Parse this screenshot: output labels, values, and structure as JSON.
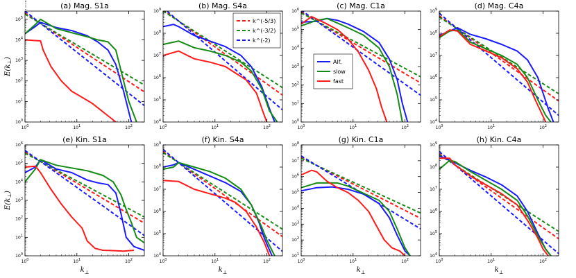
{
  "figure": {
    "x_label": "k",
    "x_label_sub": "⊥",
    "y_label": "E(k",
    "y_label_sub": "⊥",
    "y_label_close": ")"
  },
  "colors": {
    "alf": "#1a1aff",
    "slow": "#158a15",
    "fast": "#ff1a1a",
    "axis": "#000000"
  },
  "legends": {
    "dashed": [
      {
        "label": "k^(-5/3)",
        "color": "#ff1a1a"
      },
      {
        "label": "k^(-3/2)",
        "color": "#158a15"
      },
      {
        "label": "k^(-2)",
        "color": "#1a1aff"
      }
    ],
    "solid": [
      {
        "label": "Alf.",
        "color": "#1a1aff"
      },
      {
        "label": "slow",
        "color": "#158a15"
      },
      {
        "label": "fast",
        "color": "#ff1a1a"
      }
    ]
  },
  "chart_data": [
    {
      "type": "line",
      "title": "(a) Mag. S1a",
      "xlim_exp": [
        0,
        2.3
      ],
      "ylim_exp": [
        0,
        5.4
      ],
      "y_ticks": [
        0,
        1,
        2,
        3,
        4,
        5
      ],
      "x_ticks": [
        0,
        1,
        2
      ],
      "show_ylabel": true,
      "show_xlabel": false,
      "legend": "none",
      "ref_anchor": [
        0.3,
        4.8
      ],
      "series": [
        {
          "name": "Alf.",
          "x": [
            0,
            0.2,
            0.3,
            0.6,
            0.9,
            1.2,
            1.4,
            1.6,
            1.75,
            1.9,
            2.05
          ],
          "y": [
            4.3,
            4.65,
            4.85,
            4.6,
            4.45,
            4.2,
            3.9,
            3.5,
            2.8,
            1.5,
            0
          ]
        },
        {
          "name": "slow",
          "x": [
            0,
            0.2,
            0.3,
            0.6,
            0.9,
            1.2,
            1.4,
            1.6,
            1.75,
            1.9,
            2.0,
            2.15
          ],
          "y": [
            4.3,
            4.75,
            5.0,
            4.55,
            4.35,
            4.15,
            4.0,
            3.9,
            3.5,
            2.0,
            1.0,
            0
          ]
        },
        {
          "name": "fast",
          "x": [
            0,
            0.3,
            0.35,
            0.5,
            0.7,
            0.9,
            1.1,
            1.3,
            1.45,
            1.6,
            1.75
          ],
          "y": [
            4.0,
            3.95,
            3.5,
            2.7,
            2.0,
            1.5,
            1.2,
            0.9,
            0.6,
            0.3,
            0
          ]
        }
      ]
    },
    {
      "type": "line",
      "title": "(b) Mag. S4a",
      "xlim_exp": [
        0,
        2.3
      ],
      "ylim_exp": [
        4,
        9
      ],
      "y_ticks": [
        4,
        5,
        6,
        7,
        8,
        9
      ],
      "x_ticks": [
        0,
        1,
        2
      ],
      "show_ylabel": false,
      "show_xlabel": false,
      "legend": "dashed",
      "ref_anchor": [
        0.3,
        8.55
      ],
      "series": [
        {
          "name": "Alf.",
          "x": [
            0,
            0.2,
            0.3,
            0.6,
            0.9,
            1.2,
            1.5,
            1.7,
            1.9,
            2.05,
            2.15
          ],
          "y": [
            8.3,
            8.4,
            8.3,
            7.9,
            7.65,
            7.4,
            7.0,
            6.5,
            5.6,
            4.6,
            4
          ]
        },
        {
          "name": "slow",
          "x": [
            0,
            0.3,
            0.6,
            0.9,
            1.2,
            1.5,
            1.7,
            1.9,
            2.05,
            2.2
          ],
          "y": [
            7.5,
            7.65,
            7.35,
            7.2,
            7.0,
            6.7,
            6.3,
            5.5,
            4.5,
            4
          ]
        },
        {
          "name": "fast",
          "x": [
            0,
            0.3,
            0.6,
            0.9,
            1.2,
            1.4,
            1.6,
            1.8,
            1.95,
            2.0
          ],
          "y": [
            7.0,
            7.2,
            6.85,
            6.7,
            6.5,
            6.2,
            5.9,
            5.3,
            4.3,
            4
          ]
        }
      ]
    },
    {
      "type": "line",
      "title": "(c) Mag. C1a",
      "xlim_exp": [
        0,
        2.3
      ],
      "ylim_exp": [
        0,
        6
      ],
      "y_ticks": [
        0,
        1,
        2,
        3,
        4,
        5,
        6
      ],
      "x_ticks": [
        0,
        1,
        2
      ],
      "show_ylabel": false,
      "show_xlabel": false,
      "legend": "solid",
      "ref_anchor": [
        0.3,
        5.45
      ],
      "series": [
        {
          "name": "Alf.",
          "x": [
            0,
            0.3,
            0.5,
            0.7,
            0.9,
            1.2,
            1.5,
            1.7,
            1.85,
            1.95,
            2.05
          ],
          "y": [
            5.4,
            5.45,
            5.6,
            5.5,
            5.3,
            4.9,
            4.3,
            3.4,
            2.3,
            1.0,
            0
          ]
        },
        {
          "name": "slow",
          "x": [
            0,
            0.3,
            0.5,
            0.7,
            0.9,
            1.2,
            1.5,
            1.7,
            1.85,
            1.95
          ],
          "y": [
            5.2,
            5.5,
            5.6,
            5.35,
            5.1,
            4.7,
            4.0,
            3.0,
            1.5,
            0
          ]
        },
        {
          "name": "fast",
          "x": [
            0,
            0.2,
            0.35,
            0.5,
            0.7,
            0.9,
            1.1,
            1.3,
            1.45,
            1.55,
            1.65
          ],
          "y": [
            5.3,
            5.7,
            5.5,
            5.3,
            5.0,
            4.5,
            3.8,
            2.8,
            1.8,
            0.8,
            0
          ]
        }
      ]
    },
    {
      "type": "line",
      "title": "(d) Mag. C4a",
      "xlim_exp": [
        0,
        2.3
      ],
      "ylim_exp": [
        4,
        9
      ],
      "y_ticks": [
        4,
        5,
        6,
        7,
        8,
        9
      ],
      "x_ticks": [
        0,
        1,
        2
      ],
      "show_ylabel": false,
      "show_xlabel": false,
      "legend": "none",
      "ref_anchor": [
        0.35,
        8.2
      ],
      "series": [
        {
          "name": "Alf.",
          "x": [
            0,
            0.2,
            0.35,
            0.6,
            0.9,
            1.2,
            1.5,
            1.7,
            1.9,
            2.1,
            2.2
          ],
          "y": [
            7.9,
            8.1,
            8.25,
            7.95,
            7.75,
            7.5,
            7.2,
            6.8,
            6.0,
            4.6,
            4
          ]
        },
        {
          "name": "slow",
          "x": [
            0,
            0.2,
            0.35,
            0.6,
            0.9,
            1.2,
            1.5,
            1.7,
            1.9,
            2.05,
            2.15
          ],
          "y": [
            7.8,
            8.1,
            8.15,
            7.6,
            7.3,
            7.0,
            6.6,
            6.0,
            5.0,
            4.3,
            4
          ]
        },
        {
          "name": "fast",
          "x": [
            0,
            0.2,
            0.35,
            0.6,
            0.9,
            1.2,
            1.5,
            1.7,
            1.85,
            1.95,
            2.05
          ],
          "y": [
            7.85,
            8.15,
            8.1,
            7.5,
            7.2,
            6.9,
            6.4,
            5.8,
            5.0,
            4.5,
            4
          ]
        }
      ]
    },
    {
      "type": "line",
      "title": "(e) Kin. S1a",
      "xlim_exp": [
        0,
        2.3
      ],
      "ylim_exp": [
        0,
        6
      ],
      "y_ticks": [
        0,
        1,
        2,
        3,
        4,
        5,
        6
      ],
      "x_ticks": [
        0,
        1,
        2
      ],
      "show_ylabel": true,
      "show_xlabel": true,
      "legend": "none",
      "ref_anchor": [
        0.3,
        5.1
      ],
      "series": [
        {
          "name": "Alf.",
          "x": [
            0,
            0.2,
            0.3,
            0.6,
            0.9,
            1.2,
            1.4,
            1.6,
            1.75,
            1.85,
            1.95,
            2.1,
            2.3
          ],
          "y": [
            4.5,
            4.8,
            5.2,
            4.7,
            4.5,
            4.1,
            3.95,
            3.85,
            3.4,
            2.3,
            1.0,
            0.5,
            0.3
          ]
        },
        {
          "name": "slow",
          "x": [
            0,
            0.2,
            0.3,
            0.6,
            0.9,
            1.2,
            1.5,
            1.7,
            1.85,
            1.95,
            2.05,
            2.15,
            2.3
          ],
          "y": [
            4.0,
            4.7,
            5.2,
            4.9,
            4.75,
            4.6,
            4.35,
            4.0,
            3.3,
            2.5,
            1.8,
            1.0,
            0.7
          ]
        },
        {
          "name": "fast",
          "x": [
            0,
            0.2,
            0.3,
            0.5,
            0.7,
            0.9,
            1.1,
            1.2,
            1.35,
            1.5,
            1.7,
            1.9,
            2.1
          ],
          "y": [
            4.8,
            4.85,
            4.5,
            3.6,
            2.8,
            2.1,
            1.5,
            0.8,
            0.4,
            0.3,
            0.28,
            0.25,
            0.3
          ]
        }
      ]
    },
    {
      "type": "line",
      "title": "(f) Kin. S4a",
      "xlim_exp": [
        0,
        2.3
      ],
      "ylim_exp": [
        4,
        9
      ],
      "y_ticks": [
        4,
        5,
        6,
        7,
        8,
        9
      ],
      "x_ticks": [
        0,
        1,
        2
      ],
      "show_ylabel": false,
      "show_xlabel": true,
      "legend": "none",
      "ref_anchor": [
        0.3,
        8.2
      ],
      "series": [
        {
          "name": "Alf.",
          "x": [
            0,
            0.2,
            0.3,
            0.6,
            0.9,
            1.2,
            1.5,
            1.7,
            1.85,
            1.95,
            2.1
          ],
          "y": [
            8.0,
            8.1,
            8.2,
            7.9,
            7.6,
            7.3,
            6.9,
            6.3,
            5.5,
            4.8,
            4
          ]
        },
        {
          "name": "slow",
          "x": [
            0,
            0.2,
            0.3,
            0.6,
            0.9,
            1.2,
            1.5,
            1.7,
            1.9,
            2.0,
            2.15
          ],
          "y": [
            7.9,
            8.0,
            8.2,
            8.0,
            7.8,
            7.5,
            7.0,
            6.3,
            5.3,
            4.7,
            4
          ]
        },
        {
          "name": "fast",
          "x": [
            0,
            0.3,
            0.6,
            0.9,
            1.2,
            1.4,
            1.6,
            1.8,
            1.95,
            2.05
          ],
          "y": [
            7.4,
            7.35,
            7.0,
            6.8,
            6.6,
            6.4,
            6.0,
            5.3,
            4.6,
            4
          ]
        }
      ]
    },
    {
      "type": "line",
      "title": "(g) Kin. C1a",
      "xlim_exp": [
        0,
        2.3
      ],
      "ylim_exp": [
        1,
        8
      ],
      "y_ticks": [
        1,
        2,
        3,
        4,
        5,
        6,
        7,
        8
      ],
      "x_ticks": [
        0,
        1,
        2
      ],
      "show_ylabel": false,
      "show_xlabel": true,
      "legend": "none",
      "ref_anchor": [
        0.3,
        6.7
      ],
      "series": [
        {
          "name": "Alf.",
          "x": [
            0,
            0.3,
            0.6,
            0.9,
            1.2,
            1.5,
            1.7,
            1.85,
            2.0,
            2.1
          ],
          "y": [
            5.1,
            5.3,
            5.35,
            5.2,
            4.9,
            4.3,
            3.4,
            2.3,
            1.3,
            1
          ]
        },
        {
          "name": "slow",
          "x": [
            0,
            0.3,
            0.5,
            0.7,
            0.9,
            1.1,
            1.3,
            1.5,
            1.7,
            1.85,
            2.0,
            2.1
          ],
          "y": [
            5.3,
            5.6,
            5.6,
            5.6,
            5.4,
            5.1,
            4.8,
            4.5,
            3.8,
            2.7,
            1.5,
            1
          ]
        },
        {
          "name": "fast",
          "x": [
            0,
            0.2,
            0.3,
            0.5,
            0.7,
            0.9,
            1.1,
            1.3,
            1.45,
            1.6,
            1.75,
            1.9,
            2.0
          ],
          "y": [
            6.1,
            6.4,
            6.3,
            5.7,
            5.3,
            5.0,
            4.5,
            3.8,
            2.9,
            2.0,
            1.5,
            1.3,
            1
          ]
        }
      ]
    },
    {
      "type": "line",
      "title": "(h) Kin. C4a",
      "xlim_exp": [
        0,
        2.3
      ],
      "ylim_exp": [
        4,
        9
      ],
      "y_ticks": [
        4,
        5,
        6,
        7,
        8,
        9
      ],
      "x_ticks": [
        0,
        1,
        2
      ],
      "show_ylabel": false,
      "show_xlabel": true,
      "legend": "none",
      "ref_anchor": [
        0.3,
        8.1
      ],
      "series": [
        {
          "name": "Alf.",
          "x": [
            0,
            0.3,
            0.6,
            0.9,
            1.2,
            1.5,
            1.7,
            1.9,
            2.05,
            2.15
          ],
          "y": [
            8.5,
            8.2,
            7.85,
            7.55,
            7.2,
            6.7,
            6.0,
            5.0,
            4.3,
            4
          ]
        },
        {
          "name": "slow",
          "x": [
            0,
            0.2,
            0.3,
            0.6,
            0.9,
            1.2,
            1.5,
            1.7,
            1.9,
            2.05,
            2.15
          ],
          "y": [
            7.9,
            8.3,
            8.25,
            7.8,
            7.4,
            7.0,
            6.5,
            5.8,
            4.9,
            4.3,
            4
          ]
        },
        {
          "name": "fast",
          "x": [
            0,
            0.2,
            0.3,
            0.6,
            0.9,
            1.2,
            1.5,
            1.7,
            1.9,
            2.0,
            2.1
          ],
          "y": [
            8.4,
            8.4,
            8.1,
            7.6,
            7.2,
            6.8,
            6.3,
            5.6,
            4.8,
            4.3,
            4
          ]
        }
      ]
    }
  ]
}
